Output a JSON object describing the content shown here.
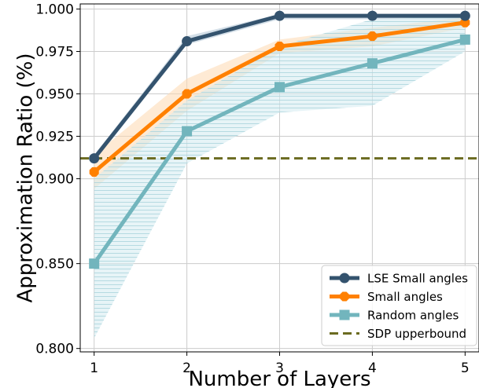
{
  "chart_data": {
    "type": "line",
    "title": "",
    "xlabel": "Number of Layers",
    "ylabel": "Approximation Ratio (%)",
    "x": [
      1,
      2,
      3,
      4,
      5
    ],
    "xticks": [
      "1",
      "2",
      "3",
      "4",
      "5"
    ],
    "xlim": [
      0.85,
      5.15
    ],
    "ylim": [
      0.798,
      1.003
    ],
    "yticks": [
      "0.800",
      "0.850",
      "0.900",
      "0.925",
      "0.950",
      "0.975",
      "1.000"
    ],
    "grid": true,
    "legend_position": "lower-right",
    "series": [
      {
        "name": "LSE Small angles",
        "color": "#34536e",
        "marker": "circle",
        "values": [
          0.912,
          0.981,
          0.996,
          0.996,
          0.996
        ],
        "band_low": [
          0.91,
          0.979,
          0.994,
          0.994,
          0.994
        ],
        "band_high": [
          0.914,
          0.984,
          0.997,
          0.997,
          0.997
        ],
        "band_color": "#aec2d3",
        "band_hatch": false
      },
      {
        "name": "Small angles",
        "color": "#ff8000",
        "marker": "octagon",
        "values": [
          0.904,
          0.95,
          0.978,
          0.984,
          0.992
        ],
        "band_low": [
          0.894,
          0.94,
          0.974,
          0.978,
          0.989
        ],
        "band_high": [
          0.914,
          0.959,
          0.982,
          0.989,
          0.995
        ],
        "band_color": "#fdd9b0",
        "band_hatch": false
      },
      {
        "name": "Random angles",
        "color": "#72b5bd",
        "marker": "square",
        "values": [
          0.85,
          0.928,
          0.954,
          0.968,
          0.982
        ],
        "band_low": [
          0.806,
          0.909,
          0.939,
          0.943,
          0.975
        ],
        "band_high": [
          0.9,
          0.946,
          0.978,
          0.994,
          0.996
        ],
        "band_color": "#d3ebf0",
        "band_hatch": true
      },
      {
        "name": "SDP upperbound",
        "color": "#6b6b20",
        "marker": "none",
        "dashed": true,
        "constant": 0.912
      }
    ]
  }
}
